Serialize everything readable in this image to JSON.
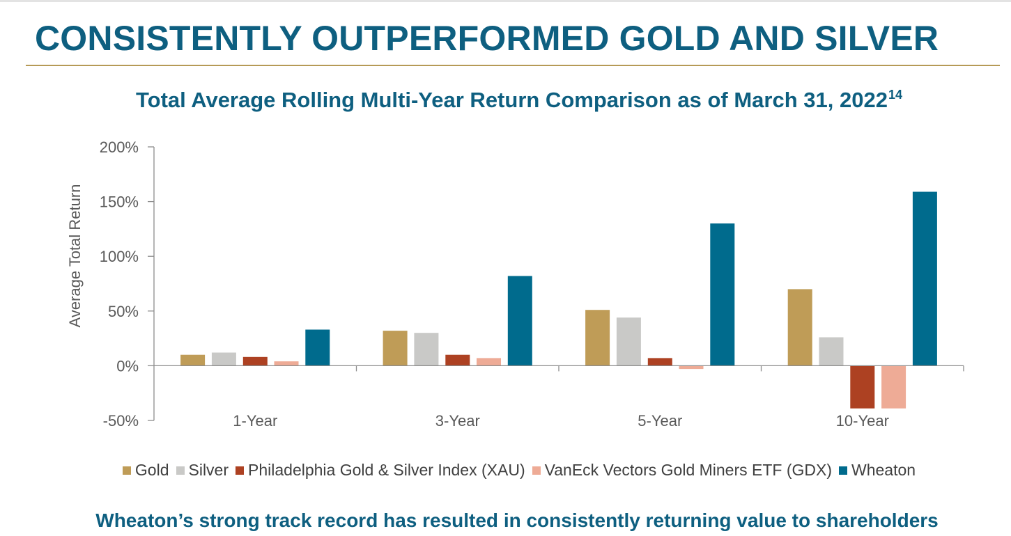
{
  "slide": {
    "title": "CONSISTENTLY OUTPERFORMED GOLD AND SILVER",
    "footer": "Wheaton’s strong track record has resulted in consistently returning value to shareholders"
  },
  "colors": {
    "title": "#0e5f80",
    "rule": "#b69a56"
  },
  "chart_data": {
    "type": "bar",
    "title": "Total Average Rolling Multi-Year Return Comparison as of March 31, 2022",
    "title_footnote": "14",
    "xlabel": "",
    "ylabel": "Average Total Return",
    "ylim": [
      -50,
      200
    ],
    "yticks": [
      200,
      150,
      100,
      50,
      0,
      -50
    ],
    "ytick_labels": [
      "200%",
      "150%",
      "100%",
      "50%",
      "0%",
      "-50%"
    ],
    "grid": false,
    "legend_position": "bottom",
    "categories": [
      "1-Year",
      "3-Year",
      "5-Year",
      "10-Year"
    ],
    "series": [
      {
        "name": "Gold",
        "color": "#bf9c57",
        "values": [
          10,
          32,
          51,
          70
        ]
      },
      {
        "name": "Silver",
        "color": "#c9c9c7",
        "values": [
          12,
          30,
          44,
          26
        ]
      },
      {
        "name": "Philadelphia Gold & Silver Index (XAU)",
        "color": "#ad4122",
        "values": [
          8,
          10,
          7,
          -39
        ]
      },
      {
        "name": "VanEck Vectors Gold Miners ETF (GDX)",
        "color": "#eeab96",
        "values": [
          4,
          7,
          -3,
          -39
        ]
      },
      {
        "name": "Wheaton",
        "color": "#006b8d",
        "values": [
          33,
          82,
          130,
          159
        ]
      }
    ]
  }
}
